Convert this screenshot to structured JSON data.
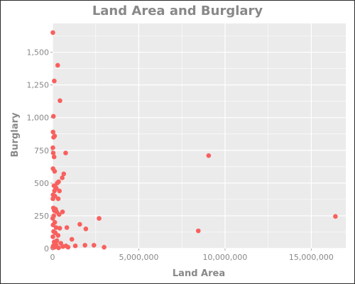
{
  "chart_data": {
    "type": "scatter",
    "title": "Land Area and Burglary",
    "xlabel": "Land Area",
    "ylabel": "Burglary",
    "xlim": [
      0,
      17000000
    ],
    "ylim": [
      0,
      1720
    ],
    "x_ticks": [
      0,
      5000000,
      10000000,
      15000000
    ],
    "x_tick_labels": [
      "0",
      "5,000,000",
      "10,000,000",
      "15,000,000"
    ],
    "y_ticks": [
      0,
      250,
      500,
      750,
      1000,
      1250,
      1500
    ],
    "y_tick_labels": [
      "0",
      "250",
      "500",
      "750",
      "1,000",
      "1,250",
      "1,500"
    ],
    "grid": true,
    "legend": "none",
    "colors": {
      "point": "#f8605e",
      "panel": "#ebebeb",
      "grid": "#ffffff",
      "text": "#888888"
    },
    "points": [
      [
        20000,
        1650
      ],
      [
        300000,
        1400
      ],
      [
        100000,
        1280
      ],
      [
        430000,
        1130
      ],
      [
        50000,
        1010
      ],
      [
        30000,
        890
      ],
      [
        120000,
        860
      ],
      [
        60000,
        850
      ],
      [
        20000,
        770
      ],
      [
        40000,
        730
      ],
      [
        760000,
        730
      ],
      [
        90000,
        700
      ],
      [
        9050000,
        710
      ],
      [
        30000,
        610
      ],
      [
        120000,
        590
      ],
      [
        650000,
        570
      ],
      [
        560000,
        540
      ],
      [
        350000,
        510
      ],
      [
        270000,
        500
      ],
      [
        80000,
        480
      ],
      [
        160000,
        470
      ],
      [
        220000,
        460
      ],
      [
        110000,
        440
      ],
      [
        400000,
        440
      ],
      [
        30000,
        410
      ],
      [
        140000,
        400
      ],
      [
        330000,
        380
      ],
      [
        20000,
        380
      ],
      [
        50000,
        310
      ],
      [
        180000,
        300
      ],
      [
        100000,
        290
      ],
      [
        240000,
        280
      ],
      [
        580000,
        280
      ],
      [
        380000,
        260
      ],
      [
        70000,
        250
      ],
      [
        10000,
        230
      ],
      [
        2700000,
        230
      ],
      [
        16400000,
        245
      ],
      [
        130000,
        200
      ],
      [
        30000,
        180
      ],
      [
        1580000,
        185
      ],
      [
        210000,
        160
      ],
      [
        420000,
        155
      ],
      [
        830000,
        160
      ],
      [
        1930000,
        150
      ],
      [
        8450000,
        135
      ],
      [
        60000,
        130
      ],
      [
        160000,
        120
      ],
      [
        320000,
        100
      ],
      [
        20000,
        90
      ],
      [
        1120000,
        70
      ],
      [
        250000,
        60
      ],
      [
        90000,
        50
      ],
      [
        480000,
        40
      ],
      [
        1880000,
        25
      ],
      [
        1320000,
        20
      ],
      [
        2400000,
        25
      ],
      [
        2990000,
        10
      ],
      [
        40000,
        20
      ],
      [
        120000,
        10
      ],
      [
        200000,
        30
      ],
      [
        600000,
        15
      ],
      [
        780000,
        20
      ],
      [
        10000,
        5
      ],
      [
        350000,
        5
      ],
      [
        900000,
        10
      ]
    ]
  }
}
